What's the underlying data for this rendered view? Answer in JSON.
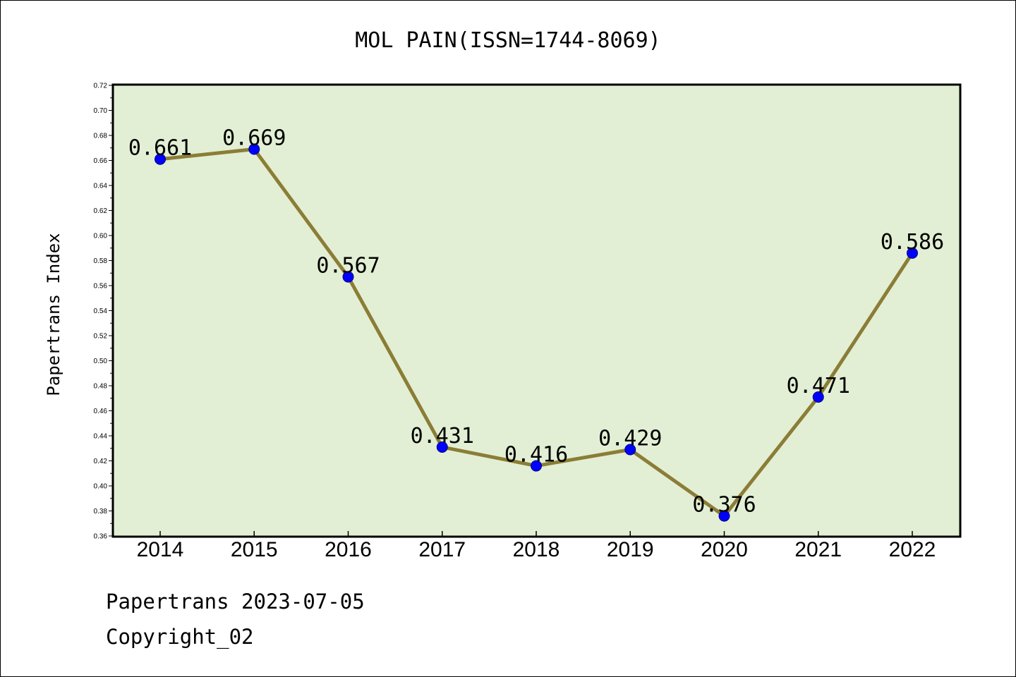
{
  "footer": {
    "line1": "Papertrans 2023-07-05",
    "line2": "Copyright_02"
  },
  "colors": {
    "plot_background": "#e2efd4",
    "line": "#8b7d36",
    "marker": "#0000ff",
    "marker_edge": "#000080"
  },
  "chart_data": {
    "type": "line",
    "title": "MOL PAIN(ISSN=1744-8069)",
    "xlabel": "",
    "ylabel": "Papertrans Index",
    "categories": [
      "2014",
      "2015",
      "2016",
      "2017",
      "2018",
      "2019",
      "2020",
      "2021",
      "2022"
    ],
    "series": [
      {
        "values": [
          0.661,
          0.669,
          0.567,
          0.431,
          0.416,
          0.429,
          0.376,
          0.471,
          0.586
        ],
        "labels": [
          "0.661",
          "0.669",
          "0.567",
          "0.431",
          "0.416",
          "0.429",
          "0.376",
          "0.471",
          "0.586"
        ]
      }
    ],
    "ylim": [
      0.36,
      0.72
    ],
    "yticks": [
      "0.36",
      "0.38",
      "0.40",
      "0.42",
      "0.44",
      "0.46",
      "0.48",
      "0.50",
      "0.52",
      "0.54",
      "0.56",
      "0.58",
      "0.60",
      "0.62",
      "0.64",
      "0.66",
      "0.68",
      "0.70",
      "0.72"
    ],
    "grid": false,
    "legend": "none"
  }
}
